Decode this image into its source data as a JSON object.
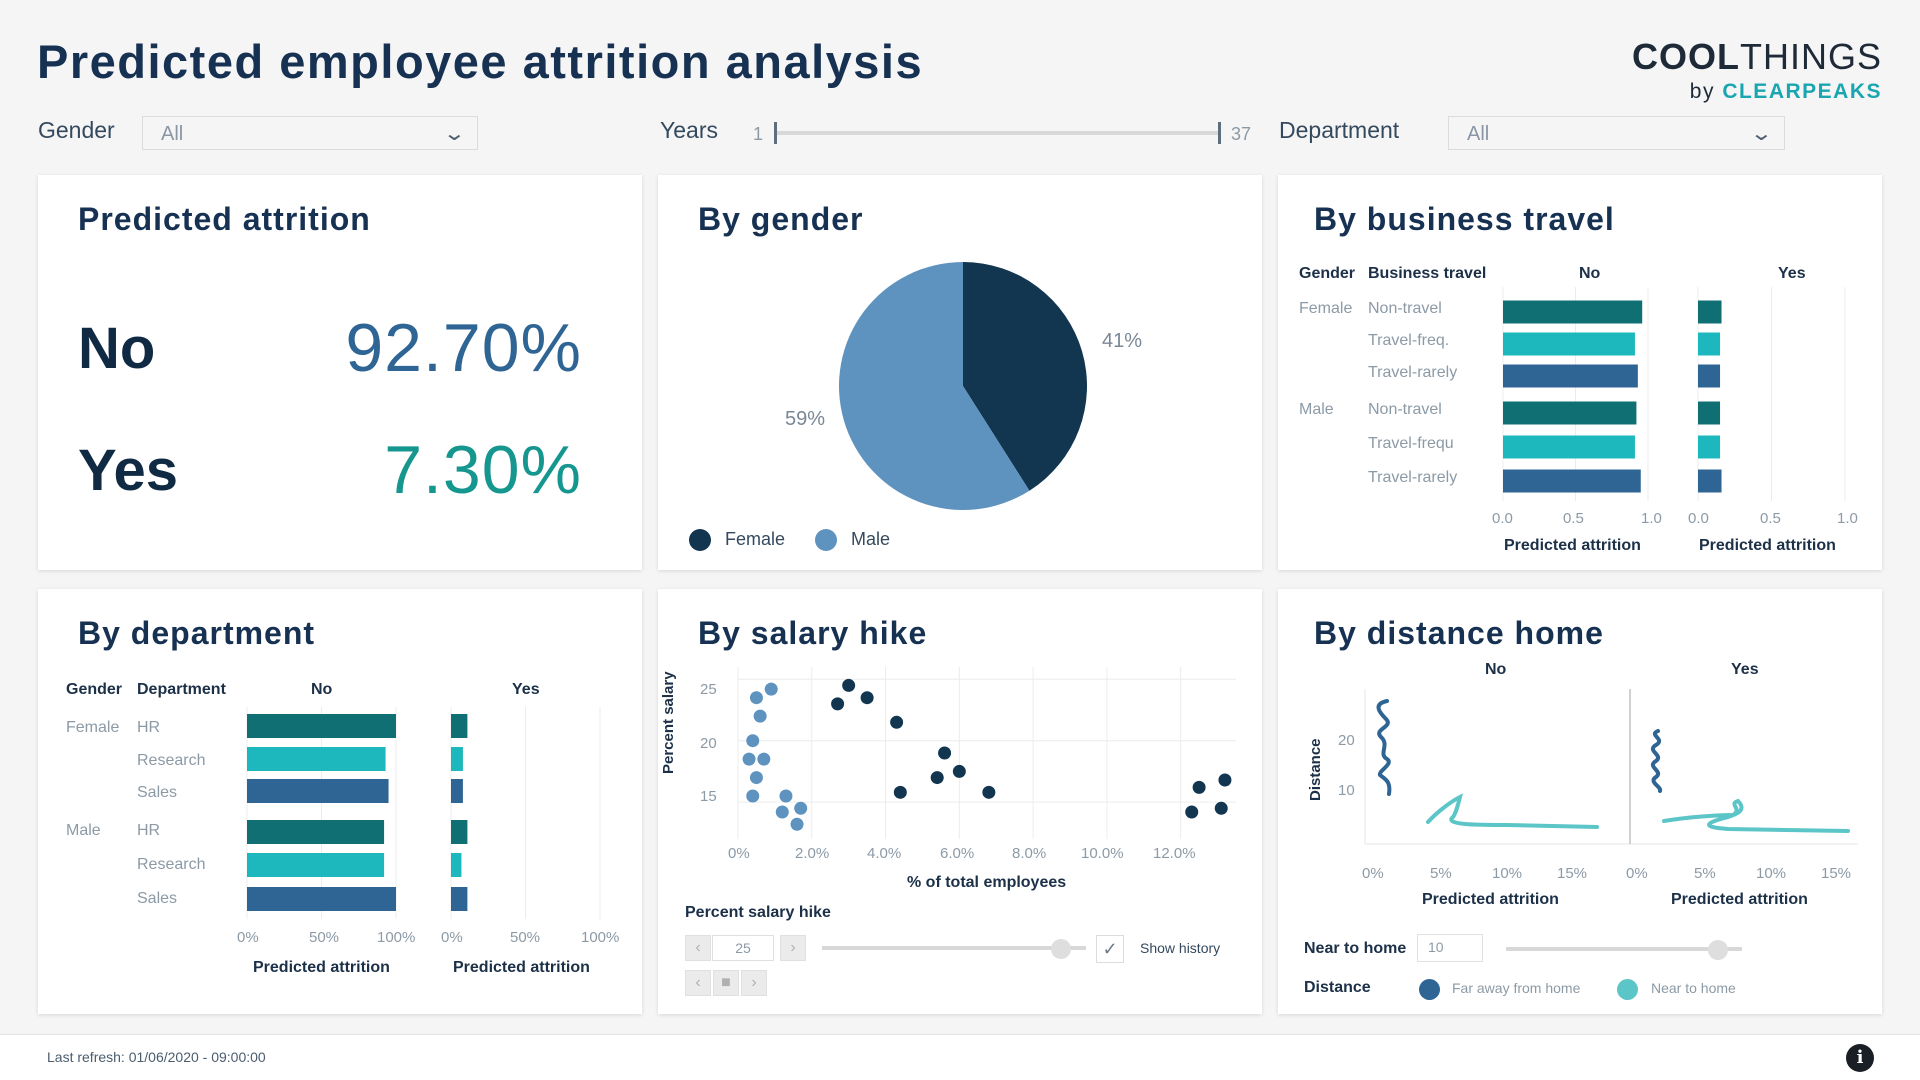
{
  "header": {
    "title": "Predicted employee attrition analysis",
    "logo_main_bold": "COOL",
    "logo_main_light": "THINGS",
    "logo_sub_by": "by",
    "logo_sub_brand": "CLEARPEAKS"
  },
  "filters": {
    "gender_label": "Gender",
    "gender_value": "All",
    "years_label": "Years",
    "years_min": "1",
    "years_max": "37",
    "department_label": "Department",
    "department_value": "All"
  },
  "kpi": {
    "title": "Predicted attrition",
    "no_label": "No",
    "no_value": "92.70%",
    "yes_label": "Yes",
    "yes_value": "7.30%"
  },
  "by_gender": {
    "title": "By gender",
    "female_pct": "41%",
    "male_pct": "59%",
    "legend_female": "Female",
    "legend_male": "Male",
    "chart_data": {
      "type": "pie",
      "categories": [
        "Female",
        "Male"
      ],
      "values": [
        41,
        59
      ],
      "colors": [
        "#123550",
        "#5f93bf"
      ]
    }
  },
  "by_travel": {
    "title": "By business travel",
    "col_gender": "Gender",
    "col_travel": "Business travel",
    "col_no": "No",
    "col_yes": "Yes",
    "genders": [
      "Female",
      "Male"
    ],
    "rows": [
      "Non-travel",
      "Travel-freq.",
      "Travel-rarely",
      "Non-travel",
      "Travel-frequ",
      "Travel-rarely"
    ],
    "ticks": [
      "0.0",
      "0.5",
      "1.0"
    ],
    "axis_title": "Predicted attrition",
    "chart_data": {
      "type": "bar",
      "categories": [
        "Female Non-travel",
        "Female Travel-freq.",
        "Female Travel-rarely",
        "Male Non-travel",
        "Male Travel-frequ",
        "Male Travel-rarely"
      ],
      "series": [
        {
          "name": "No",
          "values": [
            0.96,
            0.91,
            0.93,
            0.92,
            0.91,
            0.95
          ]
        },
        {
          "name": "Yes",
          "values": [
            0.16,
            0.15,
            0.15,
            0.15,
            0.15,
            0.16
          ]
        }
      ],
      "xlim": [
        0,
        1
      ]
    }
  },
  "by_department": {
    "title": "By department",
    "col_gender": "Gender",
    "col_department": "Department",
    "col_no": "No",
    "col_yes": "Yes",
    "genders": [
      "Female",
      "Male"
    ],
    "rows": [
      "HR",
      "Research",
      "Sales",
      "HR",
      "Research",
      "Sales"
    ],
    "ticks": [
      "0%",
      "50%",
      "100%"
    ],
    "axis_title": "Predicted attrition",
    "chart_data": {
      "type": "bar",
      "categories": [
        "Female HR",
        "Female Research",
        "Female Sales",
        "Male HR",
        "Male Research",
        "Male Sales"
      ],
      "series": [
        {
          "name": "No",
          "values": [
            100,
            93,
            95,
            92,
            92,
            100
          ]
        },
        {
          "name": "Yes",
          "values": [
            11,
            8,
            8,
            11,
            7,
            11
          ]
        }
      ],
      "xlim": [
        0,
        100
      ]
    }
  },
  "by_salary": {
    "title": "By salary hike",
    "y_title": "Percent salary",
    "x_title": "% of total employees",
    "y_ticks": [
      "25",
      "20",
      "15"
    ],
    "x_ticks": [
      "0%",
      "2.0%",
      "4.0%",
      "6.0%",
      "8.0%",
      "10.0%",
      "12.0%"
    ],
    "play_label": "Percent salary hike",
    "play_value": "25",
    "show_history": "Show history",
    "chart_data": {
      "type": "scatter",
      "xlim": [
        0,
        13.5
      ],
      "ylim": [
        12,
        26
      ],
      "series": [
        {
          "color": "#5f93bf",
          "points": [
            [
              0.5,
              23.5
            ],
            [
              0.9,
              24.2
            ],
            [
              0.6,
              22
            ],
            [
              0.4,
              20
            ],
            [
              0.3,
              18.5
            ],
            [
              0.7,
              18.5
            ],
            [
              0.5,
              17
            ],
            [
              0.4,
              15.5
            ],
            [
              1.3,
              15.5
            ],
            [
              1.7,
              14.5
            ],
            [
              1.2,
              14.2
            ],
            [
              1.6,
              13.2
            ]
          ]
        },
        {
          "color": "#123550",
          "points": [
            [
              3.0,
              24.5
            ],
            [
              2.7,
              23
            ],
            [
              3.5,
              23.5
            ],
            [
              4.3,
              21.5
            ],
            [
              5.6,
              19
            ],
            [
              6.0,
              17.5
            ],
            [
              5.4,
              17
            ],
            [
              4.4,
              15.8
            ],
            [
              6.8,
              15.8
            ],
            [
              12.5,
              16.2
            ],
            [
              13.2,
              16.8
            ],
            [
              12.3,
              14.2
            ],
            [
              13.1,
              14.5
            ]
          ]
        }
      ]
    }
  },
  "by_distance": {
    "title": "By distance home",
    "col_no": "No",
    "col_yes": "Yes",
    "y_title": "Distance",
    "y_ticks": [
      "20",
      "10"
    ],
    "x_ticks": [
      "0%",
      "5%",
      "10%",
      "15%"
    ],
    "axis_title": "Predicted attrition",
    "near_label": "Near to home",
    "near_value": "10",
    "distance_label": "Distance",
    "legend_far": "Far away from home",
    "legend_near": "Near to home",
    "colors": {
      "far": "#2f6594",
      "near": "#5cc5c8"
    }
  },
  "footer": {
    "refresh": "Last refresh: 01/06/2020 - 09:00:00"
  }
}
